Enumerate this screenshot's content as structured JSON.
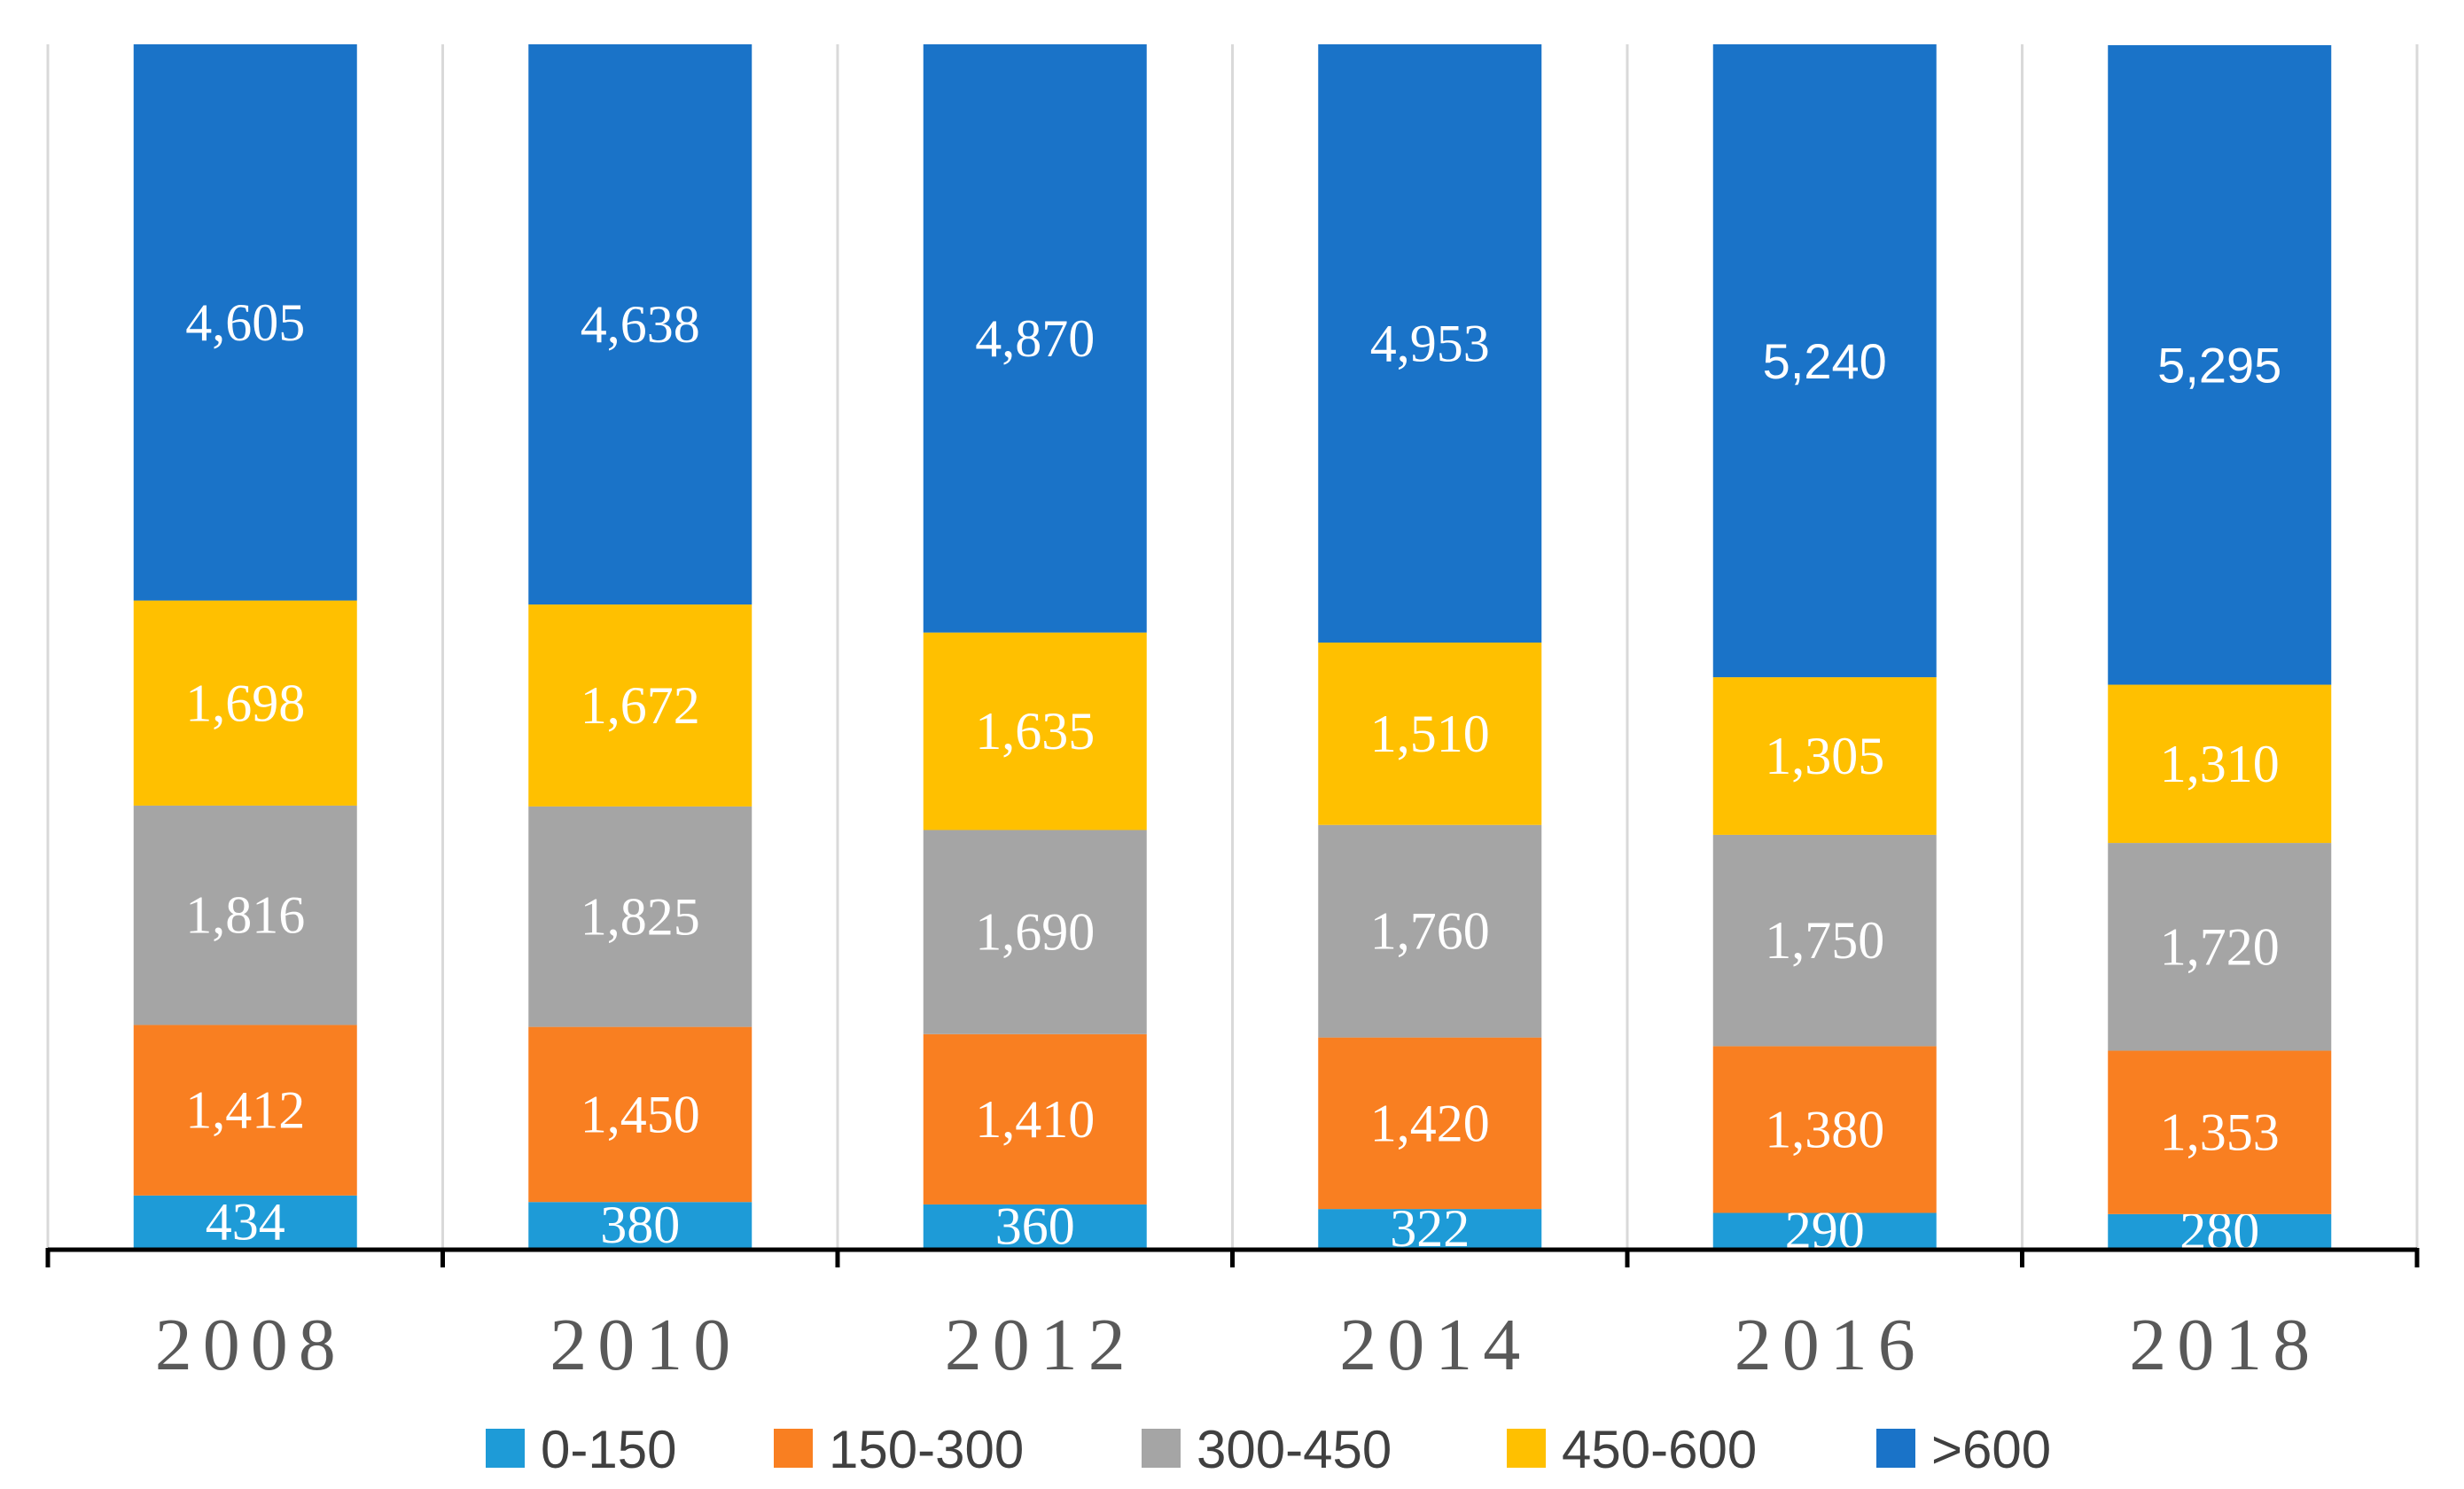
{
  "chart_data": {
    "type": "bar",
    "stacked": true,
    "categories": [
      "2008",
      "2010",
      "2012",
      "2014",
      "2016",
      "2018"
    ],
    "series": [
      {
        "name": "0-150",
        "color": "#1E9BD7",
        "values": [
          434,
          380,
          360,
          322,
          290,
          280
        ]
      },
      {
        "name": "150-300",
        "color": "#F97F21",
        "values": [
          1412,
          1450,
          1410,
          1420,
          1380,
          1353
        ]
      },
      {
        "name": "300-450",
        "color": "#A5A5A5",
        "values": [
          1816,
          1825,
          1690,
          1760,
          1750,
          1720
        ]
      },
      {
        "name": "450-600",
        "color": "#FFC000",
        "values": [
          1698,
          1672,
          1635,
          1510,
          1305,
          1310
        ]
      },
      {
        "name": ">600",
        "color": "#1A73C8",
        "values": [
          4605,
          4638,
          4870,
          4953,
          5240,
          5295
        ]
      }
    ],
    "labels": [
      [
        "434",
        "380",
        "360",
        "322",
        "290",
        "280"
      ],
      [
        "1,412",
        "1,450",
        "1,410",
        "1,420",
        "1,380",
        "1,353"
      ],
      [
        "1,816",
        "1,825",
        "1,690",
        "1,760",
        "1,750",
        "1,720"
      ],
      [
        "1,698",
        "1,672",
        "1,635",
        "1,510",
        "1,305",
        "1,310"
      ],
      [
        "4,605",
        "4,638",
        "4,870",
        "4,953",
        "5,240",
        "5,295"
      ]
    ],
    "title": "",
    "xlabel": "",
    "ylabel": "",
    "legend_position": "bottom",
    "grid": true
  }
}
